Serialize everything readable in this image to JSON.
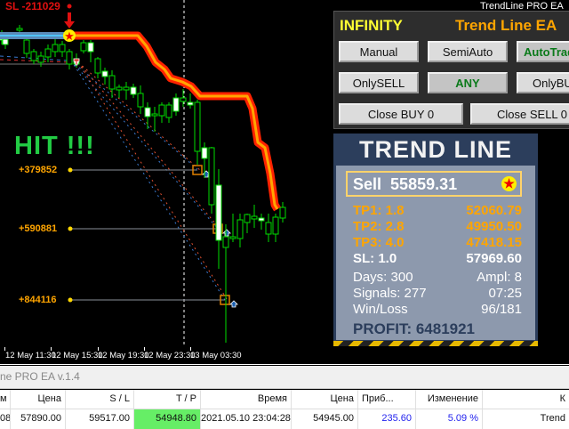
{
  "window_title": "TrendLine PRO EA",
  "chart": {
    "sl_label": "SL -211029",
    "hit_label": "HIT !!!",
    "levels": [
      "+379852",
      "+590881",
      "+844116"
    ],
    "time_labels": [
      "12 May 11:30",
      "12 May 15:30",
      "12 May 19:30",
      "12 May 23:30",
      "13 May 03:30"
    ],
    "colors": {
      "trend_line": "#ff2200",
      "trend_inner": "#ffa500",
      "bull": "#00dd00",
      "bear": "#ffffff",
      "entry_line": "#4fc3f7"
    }
  },
  "panel": {
    "title_left": "INFINITY",
    "title_right": "Trend Line EA",
    "buttons": {
      "manual": "Manual",
      "semiauto": "SemiAuto",
      "autotrade": "AutoTrade",
      "onlysell": "OnlySELL",
      "any": "ANY",
      "onlybuy": "OnlyBUY",
      "close_buy": "Close BUY 0",
      "close_sell": "Close SELL 0"
    },
    "active": [
      "AutoTrade",
      "ANY"
    ]
  },
  "info": {
    "header": "TREND LINE",
    "signal": "Sell",
    "price": "55859.31",
    "tp1_label": "TP1: 1.8",
    "tp1": "52060.79",
    "tp2_label": "TP2: 2.8",
    "tp2": "49950.50",
    "tp3_label": "TP3: 4.0",
    "tp3": "47418.15",
    "sl_label": "SL: 1.0",
    "sl": "57969.60",
    "days": "Days: 300",
    "ampl": "Ampl: 8",
    "signals": "Signals: 277",
    "time": "07:25",
    "winloss_label": "Win/Loss",
    "winloss": "96/181",
    "profit": "PROFIT: 6481921"
  },
  "terminal": {
    "title": "ne PRO EA v.1.4",
    "columns": [
      "м",
      "Цена",
      "S / L",
      "T / P",
      "Время",
      "Цена",
      "Приб...",
      "Изменение",
      "К"
    ],
    "row": [
      "08",
      "57890.00",
      "59517.00",
      "54948.80",
      "2021.05.10 23:04:28",
      "54945.00",
      "235.60",
      "5.09 %",
      "Trend"
    ]
  }
}
